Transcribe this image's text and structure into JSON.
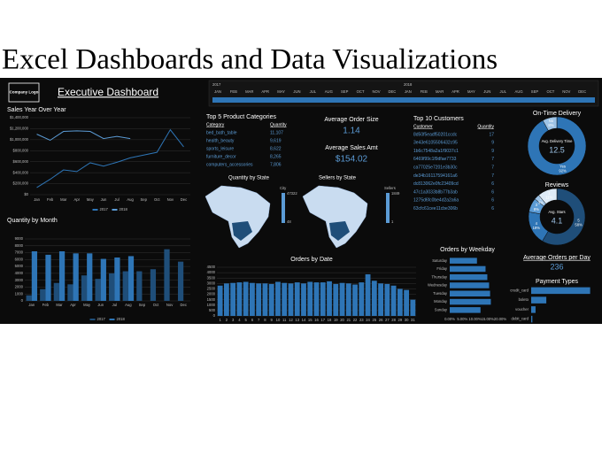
{
  "page_title": "Excel Dashboards and Data Visualizations",
  "logo": "Company Logo",
  "dashboard_title": "Executive Dashboard",
  "timeline": {
    "years": [
      "2017",
      "2018"
    ],
    "months": [
      "JAN",
      "FEB",
      "MAR",
      "APR",
      "MAY",
      "JUN",
      "JUL",
      "AUG",
      "SEP",
      "OCT",
      "NOV",
      "DEC"
    ]
  },
  "kpis": {
    "avg_order_size": {
      "title": "Average Order Size",
      "value": "1.14"
    },
    "avg_sales_amt": {
      "title": "Average Sales Amt",
      "value": "$154.02"
    },
    "avg_orders_day": {
      "title": "Average Orders per Day",
      "value": "236"
    }
  },
  "tables": {
    "top_categories": {
      "title": "Top 5 Product Categories",
      "headers": [
        "Category",
        "Quantity"
      ],
      "rows": [
        [
          "bed_bath_table",
          "11,107"
        ],
        [
          "health_beauty",
          "9,619"
        ],
        [
          "sports_leisure",
          "8,622"
        ],
        [
          "furniture_decor",
          "8,265"
        ],
        [
          "computers_accessories",
          "7,806"
        ]
      ]
    },
    "top_customers": {
      "title": "Top 10 Customers",
      "headers": [
        "Customer",
        "Quantity"
      ],
      "rows": [
        [
          "8d50f5eadf50201ccdc",
          "17"
        ],
        [
          "3e43e6105506432c95",
          "9"
        ],
        [
          "1b6c7548a2a1f9037c1",
          "9"
        ],
        [
          "6469f99c1f9dfae7733",
          "7"
        ],
        [
          "ca77025e7201e3b30c",
          "7"
        ],
        [
          "de34b16117594161a6",
          "7"
        ],
        [
          "dc813062e0fc23409cd",
          "6"
        ],
        [
          "47c1a3033b8b77b3ab",
          "6"
        ],
        [
          "1275d6fc0be4d2a2a6a",
          "6"
        ],
        [
          "63cfc61cee11cbe306b",
          "6"
        ]
      ]
    }
  },
  "maps": [
    {
      "title": "Quantity by State",
      "legend_title": "City",
      "legend_max": "47322",
      "legend_min": "48"
    },
    {
      "title": "Sellers by State",
      "legend_title": "Sellers",
      "legend_max": "1849",
      "legend_min": "1"
    }
  ],
  "chart_data": [
    {
      "type": "line",
      "title": "Sales Year Over Year",
      "categories": [
        "Jan",
        "Feb",
        "Mar",
        "Apr",
        "May",
        "Jun",
        "Jul",
        "Aug",
        "Sep",
        "Oct",
        "Nov",
        "Dec"
      ],
      "series": [
        {
          "name": "2017",
          "color": "#2e75b6",
          "values": [
            130000,
            280000,
            450000,
            420000,
            580000,
            520000,
            590000,
            670000,
            720000,
            770000,
            1180000,
            870000
          ]
        },
        {
          "name": "2018",
          "color": "#5b9bd5",
          "values": [
            1100000,
            990000,
            1150000,
            1160000,
            1150000,
            1020000,
            1060000,
            1020000,
            null,
            null,
            null,
            null
          ]
        }
      ],
      "ylim": [
        0,
        1400000
      ],
      "yticks": [
        {
          "value": 0,
          "label": "$0"
        },
        {
          "value": 200000,
          "label": "$200,000"
        },
        {
          "value": 400000,
          "label": "$400,000"
        },
        {
          "value": 600000,
          "label": "$600,000"
        },
        {
          "value": 800000,
          "label": "$800,000"
        },
        {
          "value": 1000000,
          "label": "$1,000,000"
        },
        {
          "value": 1200000,
          "label": "$1,200,000"
        },
        {
          "value": 1400000,
          "label": "$1,400,000"
        }
      ],
      "grid": true,
      "legend": "bottom"
    },
    {
      "type": "bar",
      "title": "Quantity by Month",
      "categories": [
        "Jan",
        "Feb",
        "Mar",
        "Apr",
        "May",
        "Jun",
        "Jul",
        "Aug",
        "Sep",
        "Oct",
        "Nov",
        "Dec"
      ],
      "series": [
        {
          "name": "2017",
          "color": "#1f4e79",
          "values": [
            800,
            1700,
            2600,
            2400,
            3700,
            3200,
            4000,
            4300,
            4300,
            4600,
            7500,
            5700
          ]
        },
        {
          "name": "2018",
          "color": "#2e75b6",
          "values": [
            7200,
            6700,
            7200,
            6900,
            6900,
            6100,
            6300,
            6500,
            null,
            null,
            null,
            null
          ]
        }
      ],
      "ylim": [
        0,
        9000
      ],
      "yticks": [
        0,
        1000,
        2000,
        3000,
        4000,
        5000,
        6000,
        7000,
        8000,
        9000
      ],
      "grid": true,
      "legend": "bottom"
    },
    {
      "type": "bar",
      "title": "Orders by Date",
      "categories": [
        "1",
        "2",
        "3",
        "4",
        "5",
        "6",
        "7",
        "8",
        "9",
        "10",
        "11",
        "12",
        "13",
        "14",
        "15",
        "16",
        "17",
        "18",
        "19",
        "20",
        "21",
        "22",
        "23",
        "24",
        "25",
        "26",
        "27",
        "28",
        "29",
        "30",
        "31"
      ],
      "values": [
        2800,
        3000,
        3050,
        3100,
        3150,
        3050,
        3000,
        3000,
        2950,
        3150,
        3050,
        3000,
        3100,
        3000,
        3150,
        3100,
        3100,
        3200,
        2950,
        3050,
        3000,
        2900,
        3100,
        3850,
        3250,
        3000,
        2950,
        2800,
        2500,
        2400,
        1500
      ],
      "color": "#2e75b6",
      "ylim": [
        0,
        4500
      ],
      "yticks": [
        0,
        500,
        1000,
        1500,
        2000,
        2500,
        3000,
        3500,
        4000,
        4500
      ],
      "grid": true
    },
    {
      "type": "hbar",
      "title": "Orders by Weekday",
      "categories": [
        "Saturday",
        "Friday",
        "Thursday",
        "Wednesday",
        "Tuesday",
        "Monday",
        "Sunday"
      ],
      "values": [
        10.8,
        14.2,
        14.9,
        15.6,
        16.0,
        16.3,
        12.2
      ],
      "color": "#2e75b6",
      "xlim": [
        0,
        20
      ],
      "xticks": [
        {
          "value": 0,
          "label": "0.00%"
        },
        {
          "value": 5,
          "label": "5.00%"
        },
        {
          "value": 10,
          "label": "10.00%"
        },
        {
          "value": 15,
          "label": "15.00%"
        },
        {
          "value": 20,
          "label": "20.00%"
        }
      ]
    },
    {
      "type": "donut",
      "title": "On-Time Delivery",
      "categories": [
        "Yes",
        "No"
      ],
      "values": [
        92,
        8
      ],
      "value_labels": [
        "92%",
        "8%"
      ],
      "colors": [
        "#2e75b6",
        "#9dc3e6"
      ],
      "center_label": "Avg. Delivery Time",
      "center_value": 12.5
    },
    {
      "type": "donut",
      "title": "Reviews",
      "categories": [
        "5",
        "4",
        "3",
        "2",
        "1"
      ],
      "values": [
        58,
        19,
        8,
        3,
        11
      ],
      "value_labels": [
        "58%",
        "19%",
        "8%",
        "3%",
        "11%"
      ],
      "colors": [
        "#1f4e79",
        "#2e75b6",
        "#5b9bd5",
        "#9dc3e6",
        "#deebf7"
      ],
      "center_label": "Avg. Stars",
      "center_value": 4.1
    },
    {
      "type": "hbar",
      "title": "Payment Types",
      "categories": [
        "credit_card",
        "boleto",
        "voucher",
        "debit_card"
      ],
      "values": [
        74,
        19,
        5.5,
        1.5
      ],
      "color": "#2e75b6",
      "xlim": [
        0,
        80
      ]
    }
  ]
}
